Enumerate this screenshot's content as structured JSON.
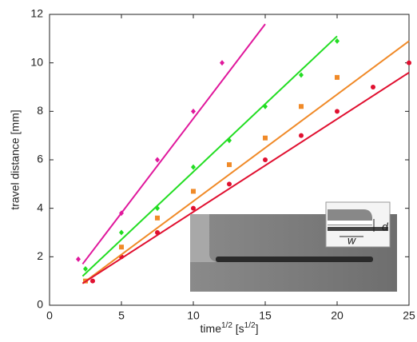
{
  "chart_data": {
    "type": "scatter",
    "xlabel": [
      "time",
      "1/2",
      " [s",
      "1/2",
      "]"
    ],
    "ylabel": "travel distance [mm]",
    "xlim": [
      0,
      25
    ],
    "ylim": [
      0,
      12
    ],
    "xticks": [
      0,
      5,
      10,
      15,
      20,
      25
    ],
    "yticks": [
      0,
      2,
      4,
      6,
      8,
      10,
      12
    ],
    "grid": false,
    "series": [
      {
        "color": "#e0189c",
        "marker": "diamond",
        "x": [
          2,
          5,
          7.5,
          10,
          12
        ],
        "values": [
          1.9,
          3.8,
          6,
          8,
          10
        ]
      },
      {
        "color": "#22dd22",
        "marker": "diamond",
        "x": [
          2.5,
          5,
          7.5,
          10,
          12.5,
          15,
          17.5,
          20
        ],
        "values": [
          1.5,
          3,
          4,
          5.7,
          6.8,
          8.2,
          9.5,
          10.9
        ]
      },
      {
        "color": "#f08a28",
        "marker": "square",
        "x": [
          2.5,
          5,
          7.5,
          10,
          12.5,
          15,
          17.5,
          20
        ],
        "values": [
          1.0,
          2.4,
          3.6,
          4.7,
          5.8,
          6.9,
          8.2,
          9.4
        ]
      },
      {
        "color": "#e01030",
        "marker": "circle",
        "x": [
          3,
          5,
          7.5,
          10,
          12.5,
          15,
          17.5,
          20,
          22.5,
          25
        ],
        "values": [
          1.0,
          2.0,
          3,
          4,
          5,
          6,
          7,
          8,
          9,
          10
        ]
      },
      {
        "color": "#e0189c",
        "style": "line",
        "x": [
          2.3,
          15
        ],
        "values": [
          1.7,
          11.6
        ]
      },
      {
        "color": "#22dd22",
        "style": "line",
        "x": [
          2.3,
          20
        ],
        "values": [
          1.2,
          11.1
        ]
      },
      {
        "color": "#f08a28",
        "style": "line",
        "x": [
          2.3,
          25
        ],
        "values": [
          0.9,
          10.9
        ]
      },
      {
        "color": "#e01030",
        "style": "line",
        "x": [
          2.3,
          25
        ],
        "values": [
          0.9,
          9.6
        ]
      }
    ],
    "inset_labels": [
      "d",
      "w"
    ]
  }
}
